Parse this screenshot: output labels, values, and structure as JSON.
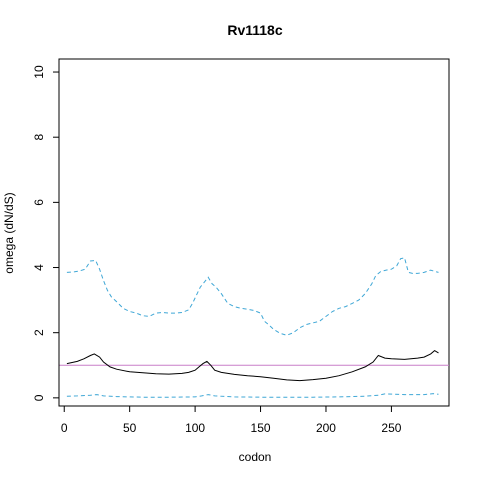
{
  "chart_data": {
    "type": "line",
    "title": "Rv1118c",
    "xlabel": "codon",
    "ylabel": "omega (dN/dS)",
    "xlim": [
      -4,
      294
    ],
    "ylim": [
      -0.25,
      10.4
    ],
    "xticks": [
      0,
      50,
      100,
      150,
      200,
      250
    ],
    "yticks": [
      0,
      2,
      4,
      6,
      8,
      10
    ],
    "grid": false,
    "reference_line": {
      "y": 1,
      "color": "#c87fc8"
    },
    "series": [
      {
        "color": "#000000",
        "dash": "solid",
        "x": [
          2,
          10,
          15,
          20,
          23,
          27,
          30,
          35,
          40,
          50,
          60,
          70,
          80,
          90,
          95,
          100,
          103,
          106,
          109,
          112,
          115,
          120,
          130,
          140,
          150,
          160,
          170,
          180,
          190,
          200,
          210,
          220,
          230,
          236,
          240,
          245,
          250,
          260,
          270,
          275,
          280,
          283,
          286
        ],
        "y": [
          1.05,
          1.12,
          1.2,
          1.3,
          1.35,
          1.25,
          1.1,
          0.95,
          0.88,
          0.8,
          0.77,
          0.74,
          0.73,
          0.75,
          0.78,
          0.85,
          0.95,
          1.05,
          1.12,
          1.0,
          0.85,
          0.78,
          0.72,
          0.68,
          0.65,
          0.6,
          0.55,
          0.53,
          0.56,
          0.6,
          0.68,
          0.8,
          0.95,
          1.1,
          1.3,
          1.22,
          1.2,
          1.18,
          1.22,
          1.25,
          1.35,
          1.45,
          1.38
        ]
      },
      {
        "color": "#3fa7d6",
        "dash": "dashed",
        "x": [
          2,
          8,
          12,
          16,
          20,
          24,
          27,
          30,
          33,
          36,
          40,
          45,
          50,
          55,
          60,
          65,
          70,
          75,
          80,
          85,
          90,
          95,
          98,
          101,
          104,
          107,
          110,
          113,
          116,
          120,
          125,
          130,
          135,
          140,
          145,
          150,
          153,
          156,
          160,
          165,
          170,
          175,
          180,
          185,
          190,
          195,
          200,
          205,
          210,
          215,
          220,
          225,
          230,
          235,
          238,
          242,
          246,
          250,
          254,
          257,
          260,
          263,
          266,
          270,
          275,
          280,
          283,
          286
        ],
        "y": [
          3.85,
          3.87,
          3.9,
          3.95,
          4.2,
          4.22,
          3.95,
          3.6,
          3.3,
          3.1,
          2.95,
          2.75,
          2.65,
          2.6,
          2.52,
          2.5,
          2.6,
          2.62,
          2.6,
          2.6,
          2.62,
          2.7,
          2.9,
          3.15,
          3.4,
          3.55,
          3.7,
          3.5,
          3.4,
          3.2,
          2.9,
          2.8,
          2.75,
          2.72,
          2.68,
          2.6,
          2.35,
          2.25,
          2.1,
          1.98,
          1.92,
          2.0,
          2.15,
          2.25,
          2.3,
          2.35,
          2.5,
          2.65,
          2.75,
          2.8,
          2.9,
          3.0,
          3.2,
          3.5,
          3.75,
          3.88,
          3.92,
          3.95,
          4.05,
          4.27,
          4.3,
          3.85,
          3.82,
          3.82,
          3.85,
          3.92,
          3.88,
          3.85
        ]
      },
      {
        "color": "#3fa7d6",
        "dash": "dashed",
        "x": [
          2,
          10,
          20,
          25,
          30,
          40,
          60,
          80,
          100,
          105,
          110,
          115,
          130,
          150,
          170,
          190,
          210,
          230,
          240,
          245,
          260,
          275,
          282,
          286
        ],
        "y": [
          0.05,
          0.06,
          0.08,
          0.1,
          0.06,
          0.04,
          0.02,
          0.02,
          0.03,
          0.06,
          0.1,
          0.06,
          0.03,
          0.02,
          0.02,
          0.02,
          0.03,
          0.05,
          0.08,
          0.12,
          0.1,
          0.1,
          0.13,
          0.11
        ]
      }
    ]
  }
}
